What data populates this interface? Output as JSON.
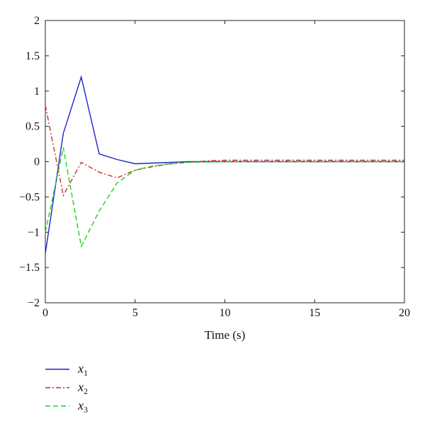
{
  "chart_data": {
    "type": "line",
    "xlabel": "Time (s)",
    "ylabel": "",
    "xlim": [
      0,
      20
    ],
    "ylim": [
      -2,
      2
    ],
    "xticks": [
      0,
      5,
      10,
      15,
      20
    ],
    "yticks": [
      -2,
      -1.5,
      -1,
      -0.5,
      0,
      0.5,
      1,
      1.5,
      2
    ],
    "x_tick_labels": [
      "0",
      "5",
      "10",
      "15",
      "20"
    ],
    "y_tick_labels": [
      "−2",
      "−1.5",
      "−1",
      "−0.5",
      "0",
      "0.5",
      "1",
      "1.5",
      "2"
    ],
    "grid": false,
    "legend_position": "below-left",
    "series": [
      {
        "name": "x1",
        "symbol": "x",
        "subscript": "1",
        "color": "#1f22c8",
        "style": "solid",
        "x": [
          0,
          1,
          2,
          3,
          4,
          5,
          6,
          7,
          8,
          10,
          12,
          14,
          16,
          18,
          20
        ],
        "y": [
          -1.3,
          0.4,
          1.2,
          0.11,
          0.03,
          -0.03,
          -0.02,
          -0.01,
          0.0,
          0.0,
          0.0,
          0.0,
          0.0,
          0.0,
          0.0
        ]
      },
      {
        "name": "x2",
        "symbol": "x",
        "subscript": "2",
        "color": "#d42a2a",
        "style": "dashdot",
        "x": [
          0,
          1,
          2,
          3,
          4,
          5,
          6,
          7,
          8,
          9,
          10,
          12,
          14,
          16,
          18,
          20
        ],
        "y": [
          0.8,
          -0.48,
          -0.01,
          -0.15,
          -0.23,
          -0.12,
          -0.07,
          -0.03,
          -0.01,
          0.01,
          0.02,
          0.02,
          0.02,
          0.02,
          0.02,
          0.02
        ]
      },
      {
        "name": "x3",
        "symbol": "x",
        "subscript": "3",
        "color": "#19d419",
        "style": "dashed",
        "x": [
          0,
          1,
          2,
          3,
          4,
          5,
          6,
          7,
          8,
          10,
          12,
          14,
          16,
          18,
          20
        ],
        "y": [
          -1.0,
          0.2,
          -1.2,
          -0.7,
          -0.3,
          -0.12,
          -0.06,
          -0.03,
          -0.01,
          0.0,
          0.0,
          0.0,
          0.0,
          0.0,
          0.0
        ]
      }
    ]
  }
}
